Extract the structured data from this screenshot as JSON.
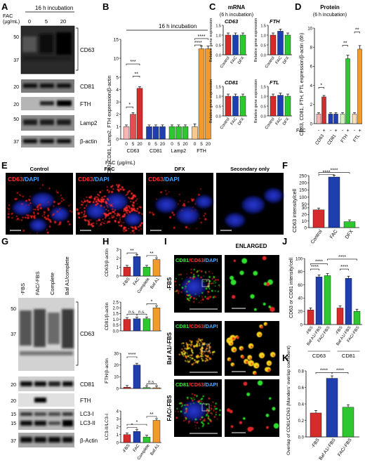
{
  "colors": {
    "red": "#d52b2b",
    "blue": "#1f3fae",
    "green": "#2fc72f",
    "orange": "#f29a2b",
    "black": "#000000"
  },
  "panelA": {
    "letter": "A",
    "condition": "16 h incubation",
    "fac_label1": "FAC",
    "fac_label2": "(µg/mL)",
    "doses": [
      "0",
      "5",
      "20"
    ],
    "bands": [
      "CD63",
      "CD81",
      "FTH",
      "Lamp2",
      "β-actin"
    ],
    "mw": [
      "50",
      "37",
      "20",
      "20",
      "50",
      "37"
    ]
  },
  "panelB": {
    "letter": "B",
    "condition": "16 h incubation",
    "ylabel": "CD63, CD81, Lamp2, FTH expression/β-actin",
    "fac_axis": "FAC (µg/mL)",
    "chart_data": {
      "type": "bar",
      "groups": [
        "CD63",
        "CD81",
        "Lamp2",
        "FTH"
      ],
      "doses": [
        "0",
        "5",
        "20"
      ],
      "series": [
        {
          "group": "CD63",
          "values": [
            1.0,
            2.0,
            4.1
          ]
        },
        {
          "group": "CD81",
          "values": [
            1.0,
            1.0,
            1.0
          ]
        },
        {
          "group": "Lamp2",
          "values": [
            1.0,
            1.0,
            1.0
          ]
        },
        {
          "group": "FTH",
          "values": [
            1.0,
            12.5,
            12.5
          ]
        }
      ],
      "ylim": [
        0,
        15
      ],
      "yticks": [
        "0",
        "1",
        "2",
        "3",
        "4",
        "5",
        "10",
        "15"
      ],
      "significance": [
        "*",
        "***",
        "**",
        "****",
        "****"
      ]
    }
  },
  "panelC": {
    "letter": "C",
    "title": "mRNA",
    "subtitle": "(6 h incubation)",
    "ylabel": "Relative gene expression",
    "conditions": [
      "Control",
      "FAC",
      "DFX"
    ],
    "yticks": [
      "0.0",
      "0.5",
      "1.0",
      "1.5"
    ],
    "chart_data": [
      {
        "type": "bar",
        "title": "CD63",
        "values": [
          1.0,
          1.0,
          1.0
        ]
      },
      {
        "type": "bar",
        "title": "FTH",
        "values": [
          1.0,
          1.2,
          1.0
        ]
      },
      {
        "type": "bar",
        "title": "CD81",
        "values": [
          1.0,
          1.0,
          1.0
        ]
      },
      {
        "type": "bar",
        "title": "FTL",
        "values": [
          1.0,
          1.05,
          1.0
        ]
      }
    ]
  },
  "panelD": {
    "letter": "D",
    "title": "Protein",
    "subtitle": "(6 h incubation)",
    "ylabel": "CD63, CD81, FTH, FTL expression/β-actin (6h)",
    "fac_axis": "FAC",
    "signs": [
      "-",
      "+",
      "-",
      "+",
      "-",
      "+",
      "-",
      "+"
    ],
    "categories": [
      "CD63",
      "CD81",
      "FTH",
      "FTL"
    ],
    "yticks": [
      "0",
      "2",
      "4",
      "6",
      "8",
      "10"
    ],
    "chart_data": {
      "type": "bar",
      "pairs": [
        {
          "name": "CD63",
          "values": [
            1.0,
            2.8
          ]
        },
        {
          "name": "CD81",
          "values": [
            1.0,
            1.0
          ]
        },
        {
          "name": "FTH",
          "values": [
            1.0,
            6.8
          ]
        },
        {
          "name": "FTL",
          "values": [
            1.0,
            7.8
          ]
        }
      ],
      "ylim": [
        0,
        10
      ],
      "significance": [
        "*",
        "**",
        "**"
      ]
    }
  },
  "panelE": {
    "letter": "E",
    "columns": [
      "Control",
      "FAC",
      "DFX",
      "Secondary only"
    ],
    "stain_cd63": "CD63",
    "stain_dapi": "/DAPI"
  },
  "panelF": {
    "letter": "F",
    "ylabel": "CD63 intensity/cell",
    "categories": [
      "Control",
      "FAC",
      "DFX"
    ],
    "yticks": [
      "0",
      "10",
      "20",
      "30",
      "50",
      "100",
      "150",
      "200",
      "250"
    ],
    "chart_data": {
      "type": "bar",
      "values": [
        27,
        240,
        9
      ],
      "significance": [
        "****",
        "****"
      ]
    }
  },
  "panelG": {
    "letter": "G",
    "lanes": [
      "-FBS",
      "FAC/-FBS",
      "Complete",
      "Baf A1/complete"
    ],
    "bands": [
      "CD63",
      "CD81",
      "FTH",
      "LC3-I",
      "LC3-II",
      "β-Actin"
    ],
    "mw": [
      "50",
      "37",
      "20",
      "20",
      "15",
      "15",
      "37"
    ]
  },
  "panelH": {
    "letter": "H",
    "categories": [
      "-FBS",
      "FAC",
      "Complete",
      "Baf A1"
    ],
    "chart_data": [
      {
        "type": "bar",
        "ylabel": "CD63/β-actin",
        "values": [
          1.0,
          2.2,
          1.0,
          1.85
        ],
        "ylim": [
          0,
          3
        ],
        "yticks": [
          "0",
          "1",
          "2",
          "3"
        ],
        "significance": [
          "**",
          "**"
        ]
      },
      {
        "type": "bar",
        "ylabel": "CD81/β-actin",
        "values": [
          1.0,
          1.05,
          1.05,
          2.0
        ],
        "ylim": [
          0,
          2.5
        ],
        "yticks": [
          "0.0",
          "0.5",
          "1.0",
          "1.5",
          "2.0",
          "2.5"
        ],
        "significance": [
          "n.s.",
          "n.s.",
          "*"
        ]
      },
      {
        "type": "bar",
        "ylabel": "FTH/β-actin",
        "values": [
          1.0,
          20.0,
          0.8,
          0.6
        ],
        "ylim": [
          0,
          30
        ],
        "yticks": [
          "0",
          "10",
          "20",
          "30"
        ],
        "significance": [
          "****",
          "n.s."
        ]
      },
      {
        "type": "bar",
        "ylabel": "LC3-II/LC3-I",
        "values": [
          1.0,
          1.4,
          0.7,
          2.8
        ],
        "ylim": [
          0,
          4
        ],
        "yticks": [
          "0",
          "1",
          "2",
          "3",
          "4"
        ],
        "significance": [
          "*",
          "*",
          "**"
        ]
      }
    ]
  },
  "panelI": {
    "letter": "I",
    "enlarged": "ENLARGED",
    "rows": [
      "-FBS",
      "Baf A1/-FBS",
      "FAC/-FBS"
    ],
    "stain_cd81": "CD81",
    "stain_cd63": "/CD63",
    "stain_dapi": "/DAPI"
  },
  "panelJ": {
    "letter": "J",
    "ylabel": "CD63 or CD81 intensity/cell",
    "bar_labels": [
      "-FBS",
      "Baf A1/-FBS",
      "FAC/-FBS",
      "-FBS",
      "Baf A1/-FBS",
      "FAC/-FBS"
    ],
    "groups": [
      "CD63",
      "CD81"
    ],
    "yticks": [
      "0",
      "20",
      "40",
      "60",
      "80",
      "100"
    ],
    "chart_data": {
      "type": "bar",
      "values": [
        22,
        72,
        74,
        25,
        70,
        20
      ],
      "ylim": [
        0,
        100
      ],
      "significance": [
        "****",
        "****",
        "****",
        "****"
      ]
    }
  },
  "panelK": {
    "letter": "K",
    "ylabel": "Overlap of CD81/CD63 (Manders' overlap coefficient)",
    "categories": [
      "-FBS",
      "Baf A1/-FBS",
      "FAC/-FBS"
    ],
    "yticks": [
      "0.0",
      "0.2",
      "0.4",
      "0.6",
      "0.8"
    ],
    "chart_data": {
      "type": "bar",
      "values": [
        0.29,
        0.71,
        0.36
      ],
      "ylim": [
        0,
        0.8
      ],
      "significance": [
        "****",
        "****"
      ]
    }
  }
}
